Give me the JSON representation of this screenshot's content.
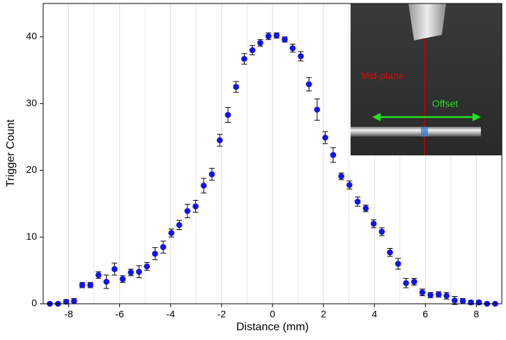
{
  "chart_data": {
    "type": "scatter",
    "xlabel": "Distance (mm)",
    "ylabel": "Trigger Count",
    "x": [
      -8.74,
      -8.42,
      -8.1,
      -7.79,
      -7.47,
      -7.15,
      -6.83,
      -6.52,
      -6.2,
      -5.88,
      -5.56,
      -5.24,
      -4.93,
      -4.61,
      -4.29,
      -3.97,
      -3.66,
      -3.34,
      -3.02,
      -2.7,
      -2.38,
      -2.07,
      -1.75,
      -1.43,
      -1.11,
      -0.79,
      -0.48,
      -0.16,
      0.16,
      0.48,
      0.79,
      1.11,
      1.43,
      1.75,
      2.07,
      2.38,
      2.7,
      3.02,
      3.34,
      3.66,
      3.97,
      4.29,
      4.61,
      4.93,
      5.24,
      5.56,
      5.88,
      6.2,
      6.52,
      6.83,
      7.15,
      7.47,
      7.79,
      8.1,
      8.42,
      8.74
    ],
    "values": [
      0,
      0,
      0.3,
      0.4,
      2.8,
      2.8,
      4.3,
      3.3,
      5.2,
      3.7,
      4.7,
      4.8,
      5.6,
      7.5,
      8.5,
      10.6,
      11.8,
      13.9,
      14.6,
      17.7,
      19.4,
      24.5,
      28.3,
      32.5,
      36.7,
      38.0,
      39.1,
      40.1,
      40.2,
      39.6,
      38.3,
      37.1,
      32.9,
      29.1,
      24.9,
      22.3,
      19.1,
      17.8,
      15.3,
      14.3,
      12.0,
      10.8,
      7.7,
      6.0,
      3.1,
      3.3,
      1.7,
      1.3,
      1.4,
      1.2,
      0.5,
      0.4,
      0.2,
      0.2,
      0,
      0
    ],
    "errors": [
      0.1,
      0.1,
      0.3,
      0.4,
      0.4,
      0.4,
      0.5,
      1.0,
      0.9,
      0.5,
      0.5,
      0.9,
      0.6,
      0.9,
      0.9,
      0.6,
      0.7,
      1.0,
      0.9,
      1.1,
      0.9,
      0.9,
      1.1,
      0.8,
      0.8,
      0.7,
      0.5,
      0.5,
      0.4,
      0.4,
      0.6,
      0.7,
      1.0,
      1.6,
      0.9,
      1.1,
      0.5,
      0.6,
      0.7,
      0.5,
      0.6,
      0.6,
      0.6,
      0.8,
      0.7,
      0.5,
      0.5,
      0.4,
      0.4,
      0.5,
      0.6,
      0.4,
      0.3,
      0.3,
      0.1,
      0.1
    ],
    "color": "#1414e6",
    "xlim": [
      -9,
      9
    ],
    "xticks": [
      -8,
      -6,
      -4,
      -2,
      0,
      2,
      4,
      6,
      8
    ],
    "x_minor_grid": [
      -7,
      -5,
      -3,
      -1,
      1,
      3,
      5,
      7
    ],
    "ylim": [
      0,
      45
    ],
    "yticks": [
      0,
      10,
      20,
      30,
      40
    ],
    "grid": true,
    "inset": {
      "midplane_label": "Mid-plane",
      "offset_label": "Offset"
    }
  }
}
